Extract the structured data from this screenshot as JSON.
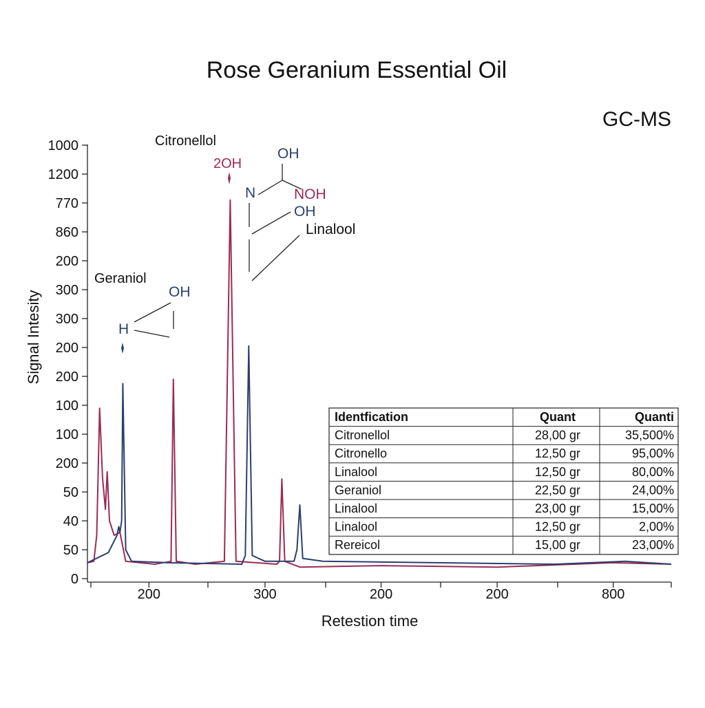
{
  "chart_data": {
    "type": "line",
    "title": "Rose Geranium Essential Oil",
    "subtitle": "GC-MS",
    "x_label": "Retestion time",
    "y_label": "Signal Intesity",
    "xlim": [
      -0.06,
      10
    ],
    "xticks": [
      {
        "value": 1,
        "label": "200"
      },
      {
        "value": 3,
        "label": "300"
      },
      {
        "value": 5,
        "label": "200"
      },
      {
        "value": 7,
        "label": "200"
      },
      {
        "value": 9,
        "label": "800"
      }
    ],
    "ylim": [
      0,
      15.5
    ],
    "yticks": [
      {
        "value": 0,
        "label": "0"
      },
      {
        "value": 1,
        "label": "50"
      },
      {
        "value": 2,
        "label": "40"
      },
      {
        "value": 3,
        "label": "50"
      },
      {
        "value": 4,
        "label": "200"
      },
      {
        "value": 5,
        "label": "100"
      },
      {
        "value": 6,
        "label": "100"
      },
      {
        "value": 7,
        "label": "200"
      },
      {
        "value": 8,
        "label": "200"
      },
      {
        "value": 9,
        "label": "300"
      },
      {
        "value": 10,
        "label": "300"
      },
      {
        "value": 11,
        "label": "200"
      },
      {
        "value": 12,
        "label": "860"
      },
      {
        "value": 13,
        "label": "770"
      },
      {
        "value": 14,
        "label": "1200"
      },
      {
        "value": 15,
        "label": "1000"
      }
    ],
    "series": [
      {
        "color": "#9b2a55",
        "x": [
          -0.06,
          0.05,
          0.1,
          0.15,
          0.2,
          0.25,
          0.28,
          0.32,
          0.4,
          0.5,
          0.6,
          1.1,
          1.38,
          1.42,
          1.47,
          1.8,
          2.3,
          2.4,
          2.5,
          3.2,
          3.25,
          3.29,
          3.34,
          3.6,
          5,
          7,
          9,
          10
        ],
        "values": [
          0.55,
          0.6,
          1.5,
          5.9,
          3.5,
          2.4,
          3.7,
          2.0,
          1.5,
          1.6,
          0.6,
          0.5,
          0.6,
          6.9,
          0.6,
          0.5,
          0.6,
          13.1,
          0.6,
          0.5,
          0.6,
          3.45,
          0.6,
          0.4,
          0.45,
          0.4,
          0.55,
          0.5
        ]
      },
      {
        "color": "#2b3f6b",
        "x": [
          -0.06,
          0.3,
          0.45,
          0.48,
          0.5,
          0.53,
          0.55,
          0.6,
          0.7,
          1.35,
          2.6,
          2.66,
          2.72,
          2.78,
          3.0,
          3.5,
          3.55,
          3.6,
          3.65,
          4,
          6,
          8,
          9.2,
          10
        ],
        "values": [
          0.55,
          0.9,
          1.5,
          1.8,
          1.6,
          2.0,
          6.75,
          1.0,
          0.6,
          0.55,
          0.5,
          0.8,
          8.05,
          0.8,
          0.6,
          0.6,
          1.0,
          2.55,
          0.7,
          0.6,
          0.55,
          0.5,
          0.6,
          0.5
        ]
      }
    ],
    "annotations": [
      "Citronellol",
      "2OH",
      "OH",
      "N",
      "NOH",
      "OH",
      "Linalool",
      "Geraniol",
      "OH",
      "H"
    ]
  },
  "table": {
    "header": [
      "Identfication",
      "Quant",
      "Quanti"
    ],
    "rows": [
      [
        "Citronellol",
        "28,00 gr",
        "35,500%"
      ],
      [
        "Citronello",
        "12,50 gr",
        "95,00%"
      ],
      [
        "Linalool",
        "12,50 gr",
        "80,00%"
      ],
      [
        "Geraniol",
        "22,50 gr",
        "24,00%"
      ],
      [
        "Linalool",
        "23,00 gr",
        "15,00%"
      ],
      [
        "Linalool",
        "12,50 gr",
        "2,00%"
      ],
      [
        "Rereicol",
        "15,00 gr",
        "23,00%"
      ]
    ]
  }
}
